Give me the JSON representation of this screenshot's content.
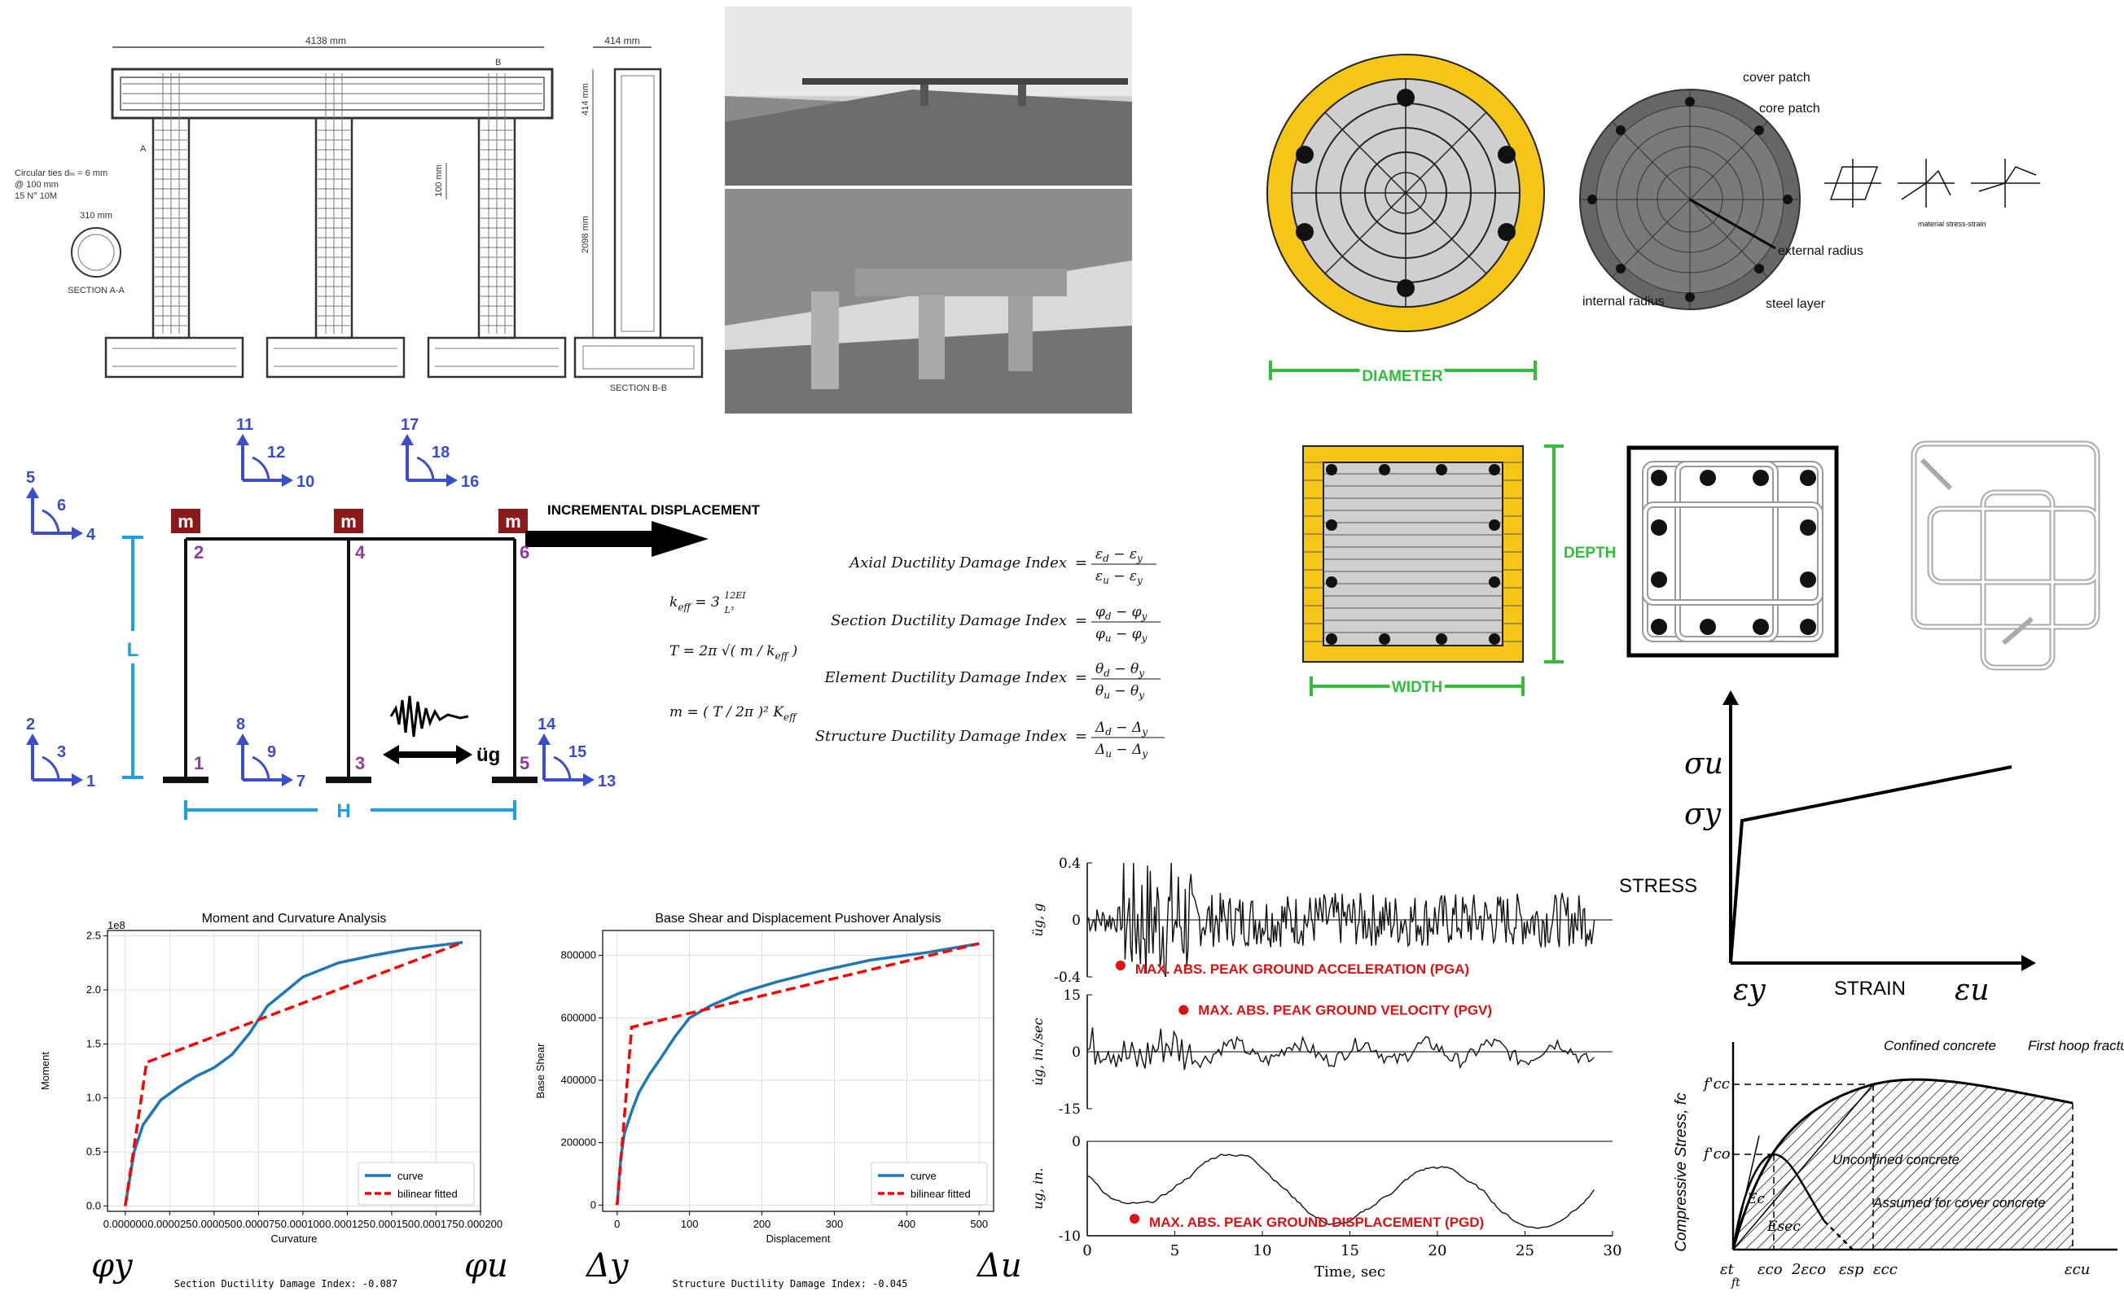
{
  "drawing": {
    "dim_width": "4138 mm",
    "dim_col_width": "414 mm",
    "dim_beam_depth": "414 mm",
    "dim_col_height": "2098 mm",
    "dim_spacing": "100 mm",
    "dim_circle": "310 mm",
    "ties_line1": "Circular ties dₘ = 6 mm",
    "ties_line2": "@ 100 mm",
    "ties_line3": "15 N° 10M",
    "section_aa": "SECTION A-A",
    "section_bb": "SECTION B-B",
    "mark_a": "A",
    "mark_b": "B"
  },
  "fiber_circle": {
    "diameter_label": "DIAMETER",
    "cover_patch": "cover patch",
    "core_patch": "core patch",
    "external_radius": "external radius",
    "internal_radius": "internal radius",
    "steel_layer": "steel layer",
    "material_label": "material stress-strain"
  },
  "fiber_rect": {
    "depth_label": "DEPTH",
    "width_label": "WIDTH"
  },
  "frame": {
    "incremental": "INCREMENTAL DISPLACEMENT",
    "mass": "m",
    "L": "L",
    "H": "H",
    "ground": "üg",
    "nodes": [
      "1",
      "2",
      "3",
      "4",
      "5",
      "6"
    ],
    "dofs": [
      "1",
      "2",
      "3",
      "4",
      "5",
      "6",
      "7",
      "8",
      "9",
      "10",
      "11",
      "12",
      "13",
      "14",
      "15",
      "16",
      "17",
      "18"
    ]
  },
  "equations": {
    "keff": "k_eff = 3 12EI / L³",
    "T": "T = 2π √(m / k_eff)",
    "m": "m = (T / 2π)² K_eff",
    "axial": "Axial Ductility Damage Index",
    "section": "Section Ductility Damage Index",
    "element": "Element Ductility Damage Index",
    "structure": "Structure Ductility Damage Index"
  },
  "chart_data": [
    {
      "type": "line",
      "title": "Moment and Curvature Analysis",
      "xlabel": "Curvature",
      "ylabel": "Moment",
      "y_multiplier": "1e8",
      "xlim": [
        -1e-05,
        0.0002
      ],
      "ylim": [
        -0.05,
        2.55
      ],
      "xticks": [
        "0.000000",
        "0.000025",
        "0.000050",
        "0.000075",
        "0.000100",
        "0.000125",
        "0.000150",
        "0.000175",
        "0.000200"
      ],
      "yticks": [
        "0.0",
        "0.5",
        "1.0",
        "1.5",
        "2.0",
        "2.5"
      ],
      "series": [
        {
          "name": "curve",
          "color": "#1f77b4",
          "x": [
            0,
            5e-06,
            1e-05,
            2e-05,
            3e-05,
            4e-05,
            5e-05,
            6e-05,
            7e-05,
            8e-05,
            0.0001,
            0.00012,
            0.00014,
            0.00016,
            0.00018,
            0.00019
          ],
          "y": [
            0,
            0.5,
            0.75,
            0.98,
            1.1,
            1.2,
            1.28,
            1.4,
            1.6,
            1.85,
            2.12,
            2.25,
            2.32,
            2.38,
            2.42,
            2.44
          ]
        },
        {
          "name": "bilinear fitted",
          "color": "#ff0000",
          "dashed": true,
          "x": [
            0,
            1.2e-05,
            0.00019
          ],
          "y": [
            0,
            1.33,
            2.44
          ]
        }
      ],
      "footer": "Section Ductility Damage Index: -0.087",
      "left_symbol": "φy",
      "right_symbol": "φu",
      "legend": "lower right"
    },
    {
      "type": "line",
      "title": "Base Shear and Displacement Pushover Analysis",
      "xlabel": "Displacement",
      "ylabel": "Base Shear",
      "xlim": [
        -20,
        520
      ],
      "ylim": [
        -20000,
        880000
      ],
      "xticks": [
        "0",
        "100",
        "200",
        "300",
        "400",
        "500"
      ],
      "yticks": [
        "0",
        "200000",
        "400000",
        "600000",
        "800000"
      ],
      "series": [
        {
          "name": "curve",
          "color": "#1f77b4",
          "x": [
            0,
            5,
            10,
            20,
            30,
            45,
            60,
            80,
            100,
            130,
            170,
            220,
            280,
            350,
            430,
            500
          ],
          "y": [
            0,
            150000,
            230000,
            300000,
            360000,
            420000,
            470000,
            540000,
            600000,
            640000,
            680000,
            715000,
            750000,
            785000,
            810000,
            838000
          ]
        },
        {
          "name": "bilinear fitted",
          "color": "#ff0000",
          "dashed": true,
          "x": [
            0,
            20,
            500
          ],
          "y": [
            0,
            570000,
            838000
          ]
        }
      ],
      "footer": "Structure Ductility Damage Index: -0.045",
      "left_symbol": "Δy",
      "right_symbol": "Δu",
      "legend": "lower right"
    },
    {
      "type": "line",
      "xlabel": "Time, sec",
      "xlim": [
        0,
        30
      ],
      "xticks": [
        "0",
        "5",
        "10",
        "15",
        "20",
        "25",
        "30"
      ],
      "panels": [
        {
          "ylabel": "üg, g",
          "yticks": [
            "0.4",
            "0",
            "-0.4"
          ],
          "ylim": [
            -0.4,
            0.4
          ],
          "peak_label": "MAX. ABS. PEAK GROUND ACCELERATION (PGA)",
          "peak_t": 1.9,
          "peak_v": -0.32
        },
        {
          "ylabel": "u̇g, in./sec",
          "yticks": [
            "15",
            "0",
            "-15"
          ],
          "ylim": [
            -15,
            15
          ],
          "peak_label": "MAX. ABS. PEAK GROUND VELOCITY (PGV)",
          "peak_t": 5.5,
          "peak_v": 11
        },
        {
          "ylabel": "ug, in.",
          "yticks": [
            "0",
            "-10"
          ],
          "ylim": [
            -10,
            0
          ],
          "peak_label": "MAX. ABS. PEAK GROUND DISPLACEMENT (PGD)",
          "peak_t": 2.7,
          "peak_v": -8.2
        }
      ]
    }
  ],
  "stress_strain": {
    "sigma_u": "σu",
    "sigma_y": "σy",
    "eps_y": "εy",
    "eps_u": "εu",
    "stress": "STRESS",
    "strain": "STRAIN"
  },
  "mander": {
    "ylabel": "Compressive Stress, fc",
    "fcc": "f'cc",
    "fco": "f'co",
    "confined": "Confined concrete",
    "first_hoop": "First hoop fracture",
    "unconfined": "Unconfined concrete",
    "assumed": "Assumed for cover concrete",
    "ec": "Ec",
    "esec": "Esec",
    "ticks": [
      "εt",
      "ft",
      "εco",
      "2εco",
      "εsp",
      "εcc",
      "εcu"
    ]
  }
}
